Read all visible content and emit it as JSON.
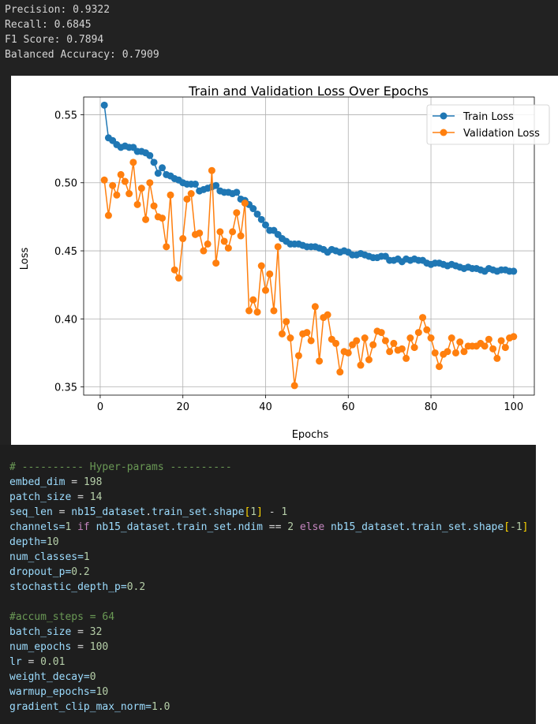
{
  "metrics": [
    "Precision: 0.9322",
    "Recall: 0.6845",
    "F1 Score: 0.7894",
    "Balanced Accuracy: 0.7909"
  ],
  "chart_data": {
    "type": "line",
    "title": "Train and Validation Loss Over Epochs",
    "xlabel": "Epochs",
    "ylabel": "Loss",
    "xlim": [
      -4,
      105
    ],
    "ylim": [
      0.344,
      0.563
    ],
    "xticks": [
      0,
      20,
      40,
      60,
      80,
      100
    ],
    "yticks": [
      0.35,
      0.4,
      0.45,
      0.5,
      0.55
    ],
    "xtick_labels": [
      "0",
      "20",
      "40",
      "60",
      "80",
      "100"
    ],
    "ytick_labels": [
      "0.35",
      "0.40",
      "0.45",
      "0.50",
      "0.55"
    ],
    "grid": true,
    "legend": "top-right",
    "series": [
      {
        "name": "Train Loss",
        "color": "#1f77b4",
        "x": [
          1,
          2,
          3,
          4,
          5,
          6,
          7,
          8,
          9,
          10,
          11,
          12,
          13,
          14,
          15,
          16,
          17,
          18,
          19,
          20,
          21,
          22,
          23,
          24,
          25,
          26,
          27,
          28,
          29,
          30,
          31,
          32,
          33,
          34,
          35,
          36,
          37,
          38,
          39,
          40,
          41,
          42,
          43,
          44,
          45,
          46,
          47,
          48,
          49,
          50,
          51,
          52,
          53,
          54,
          55,
          56,
          57,
          58,
          59,
          60,
          61,
          62,
          63,
          64,
          65,
          66,
          67,
          68,
          69,
          70,
          71,
          72,
          73,
          74,
          75,
          76,
          77,
          78,
          79,
          80,
          81,
          82,
          83,
          84,
          85,
          86,
          87,
          88,
          89,
          90,
          91,
          92,
          93,
          94,
          95,
          96,
          97,
          98,
          99,
          100
        ],
        "values": [
          0.557,
          0.533,
          0.531,
          0.528,
          0.526,
          0.527,
          0.526,
          0.526,
          0.523,
          0.523,
          0.522,
          0.52,
          0.515,
          0.507,
          0.511,
          0.506,
          0.505,
          0.503,
          0.502,
          0.5,
          0.499,
          0.499,
          0.499,
          0.494,
          0.495,
          0.496,
          0.497,
          0.498,
          0.494,
          0.493,
          0.493,
          0.492,
          0.493,
          0.488,
          0.487,
          0.484,
          0.481,
          0.477,
          0.473,
          0.469,
          0.465,
          0.465,
          0.462,
          0.459,
          0.457,
          0.455,
          0.455,
          0.455,
          0.454,
          0.453,
          0.453,
          0.453,
          0.452,
          0.451,
          0.449,
          0.451,
          0.45,
          0.449,
          0.45,
          0.449,
          0.447,
          0.447,
          0.448,
          0.447,
          0.446,
          0.445,
          0.445,
          0.446,
          0.446,
          0.443,
          0.443,
          0.444,
          0.442,
          0.444,
          0.443,
          0.444,
          0.443,
          0.443,
          0.441,
          0.44,
          0.441,
          0.441,
          0.44,
          0.439,
          0.44,
          0.439,
          0.438,
          0.437,
          0.438,
          0.437,
          0.437,
          0.436,
          0.435,
          0.437,
          0.436,
          0.435,
          0.436,
          0.436,
          0.435,
          0.435
        ]
      },
      {
        "name": "Validation Loss",
        "color": "#ff7f0e",
        "x": [
          1,
          2,
          3,
          4,
          5,
          6,
          7,
          8,
          9,
          10,
          11,
          12,
          13,
          14,
          15,
          16,
          17,
          18,
          19,
          20,
          21,
          22,
          23,
          24,
          25,
          26,
          27,
          28,
          29,
          30,
          31,
          32,
          33,
          34,
          35,
          36,
          37,
          38,
          39,
          40,
          41,
          42,
          43,
          44,
          45,
          46,
          47,
          48,
          49,
          50,
          51,
          52,
          53,
          54,
          55,
          56,
          57,
          58,
          59,
          60,
          61,
          62,
          63,
          64,
          65,
          66,
          67,
          68,
          69,
          70,
          71,
          72,
          73,
          74,
          75,
          76,
          77,
          78,
          79,
          80,
          81,
          82,
          83,
          84,
          85,
          86,
          87,
          88,
          89,
          90,
          91,
          92,
          93,
          94,
          95,
          96,
          97,
          98,
          99,
          100
        ],
        "values": [
          0.502,
          0.476,
          0.498,
          0.491,
          0.506,
          0.501,
          0.492,
          0.515,
          0.484,
          0.496,
          0.473,
          0.5,
          0.483,
          0.475,
          0.474,
          0.453,
          0.491,
          0.436,
          0.43,
          0.459,
          0.488,
          0.492,
          0.462,
          0.463,
          0.45,
          0.455,
          0.509,
          0.441,
          0.464,
          0.457,
          0.452,
          0.464,
          0.478,
          0.461,
          0.485,
          0.406,
          0.414,
          0.405,
          0.439,
          0.421,
          0.433,
          0.406,
          0.453,
          0.389,
          0.398,
          0.386,
          0.351,
          0.373,
          0.389,
          0.39,
          0.384,
          0.409,
          0.369,
          0.401,
          0.403,
          0.385,
          0.382,
          0.361,
          0.376,
          0.375,
          0.381,
          0.384,
          0.366,
          0.386,
          0.37,
          0.381,
          0.391,
          0.39,
          0.384,
          0.376,
          0.382,
          0.377,
          0.378,
          0.371,
          0.386,
          0.379,
          0.39,
          0.401,
          0.392,
          0.386,
          0.375,
          0.365,
          0.374,
          0.376,
          0.386,
          0.375,
          0.383,
          0.376,
          0.38,
          0.38,
          0.38,
          0.382,
          0.38,
          0.385,
          0.378,
          0.371,
          0.384,
          0.379,
          0.386,
          0.387
        ]
      }
    ]
  },
  "code": {
    "comment_hyper": "# ---------- Hyper-params ----------",
    "embed_dim_val": "198",
    "patch_size_val": "14",
    "seq_len_var": "seq_len",
    "seq_len_obj": "nb15_dataset",
    "seq_len_attr": "train_set.shape",
    "seq_len_idx": "1",
    "seq_len_sub": "1",
    "channels_expr_left": "channels=",
    "channels_num1": "1",
    "channels_if": "if",
    "channels_mid": "nb15_dataset.train_set.ndim",
    "channels_num2": "2",
    "channels_else": "else",
    "channels_right": "nb15_dataset.train_set.shape",
    "channels_idx": "-1",
    "depth": "depth=",
    "depth_val": "10",
    "num_classes": "num_classes=",
    "num_classes_val": "1",
    "dropout_p": "dropout_p=",
    "dropout_p_val": "0.2",
    "stochastic": "stochastic_depth_p=",
    "stochastic_val": "0.2",
    "comment_accum": "#accum_steps = 64",
    "batch_size_val": "32",
    "num_epochs_val": "100",
    "lr_val": "0.01",
    "weight_decay": "weight_decay=",
    "weight_decay_val": "0",
    "warmup": "warmup_epochs=",
    "warmup_val": "10",
    "grad": "gradient_clip_max_norm=",
    "grad_val": "1.0"
  }
}
